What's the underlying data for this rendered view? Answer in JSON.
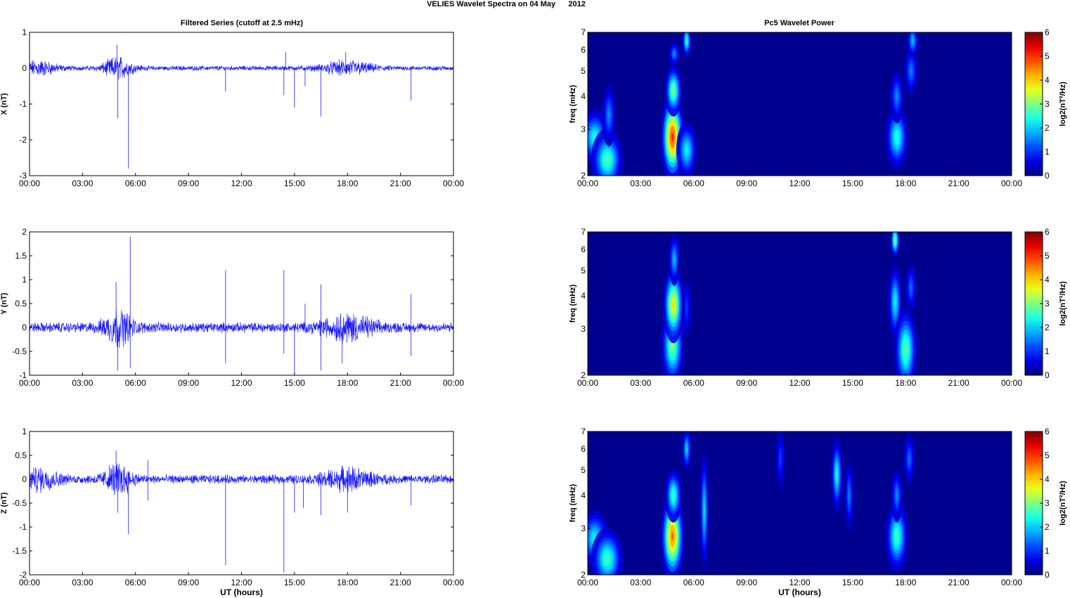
{
  "figure": {
    "title": "VELIES Wavelet Spectra on 04 May      2012"
  },
  "colors": {
    "trace": "#1a1aff",
    "background_spec": "#00008f"
  },
  "chart_data": [
    {
      "type": "line",
      "title": "Filtered Series (cutoff at 2.5 mHz)",
      "xlabel": "",
      "ylabel": "X (nT)",
      "xlim": [
        0,
        24
      ],
      "ylim": [
        -3,
        1
      ],
      "xticklabels": [
        "00:00",
        "03:00",
        "06:00",
        "09:00",
        "12:00",
        "15:00",
        "18:00",
        "21:00",
        "00:00"
      ],
      "yticks": [
        -3,
        -2,
        -1,
        0,
        1
      ],
      "yticklabels": [
        "-3",
        "-2",
        "-1",
        "0",
        "1"
      ],
      "noise_amp": 0.05,
      "bursts": [
        {
          "t": 0.5,
          "w": 1.0,
          "a": 0.15
        },
        {
          "t": 5.0,
          "w": 0.8,
          "a": 0.22
        },
        {
          "t": 18.0,
          "w": 1.4,
          "a": 0.14
        }
      ],
      "spikes": [
        [
          4.95,
          0.65
        ],
        [
          5.0,
          -1.4
        ],
        [
          5.6,
          -2.8
        ],
        [
          11.1,
          -0.65
        ],
        [
          14.4,
          -0.75
        ],
        [
          14.5,
          0.45
        ],
        [
          15.0,
          -1.1
        ],
        [
          15.6,
          -0.5
        ],
        [
          16.5,
          -1.35
        ],
        [
          21.6,
          -0.9
        ],
        [
          17.9,
          0.45
        ]
      ]
    },
    {
      "type": "line",
      "title": "",
      "xlabel": "",
      "ylabel": "Y (nT)",
      "xlim": [
        0,
        24
      ],
      "ylim": [
        -1,
        2
      ],
      "xticklabels": [
        "00:00",
        "03:00",
        "06:00",
        "09:00",
        "12:00",
        "15:00",
        "18:00",
        "21:00",
        "00:00"
      ],
      "yticks": [
        -1,
        -0.5,
        0,
        0.5,
        1,
        1.5,
        2
      ],
      "yticklabels": [
        "-1",
        "-0.5",
        "0",
        "0.5",
        "1",
        "1.5",
        "2"
      ],
      "noise_amp": 0.08,
      "bursts": [
        {
          "t": 5.0,
          "w": 0.8,
          "a": 0.25
        },
        {
          "t": 18.0,
          "w": 1.4,
          "a": 0.18
        }
      ],
      "spikes": [
        [
          4.9,
          0.95
        ],
        [
          5.0,
          -0.9
        ],
        [
          5.7,
          1.9
        ],
        [
          5.7,
          -0.85
        ],
        [
          11.1,
          1.2
        ],
        [
          11.1,
          -0.75
        ],
        [
          14.4,
          1.2
        ],
        [
          14.4,
          -0.55
        ],
        [
          15.0,
          -0.95
        ],
        [
          15.6,
          0.5
        ],
        [
          16.5,
          0.9
        ],
        [
          16.5,
          -0.9
        ],
        [
          17.7,
          -0.75
        ],
        [
          21.6,
          0.7
        ],
        [
          21.6,
          -0.6
        ]
      ]
    },
    {
      "type": "line",
      "title": "",
      "xlabel": "UT (hours)",
      "ylabel": "Z (nT)",
      "xlim": [
        0,
        24
      ],
      "ylim": [
        -2,
        1
      ],
      "xticklabels": [
        "00:00",
        "03:00",
        "06:00",
        "09:00",
        "12:00",
        "15:00",
        "18:00",
        "21:00",
        "00:00"
      ],
      "yticks": [
        -2,
        -1.5,
        -1,
        -0.5,
        0,
        0.5,
        1
      ],
      "yticklabels": [
        "-2",
        "-1.5",
        "-1",
        "-0.5",
        "0",
        "0.5",
        "1"
      ],
      "noise_amp": 0.07,
      "bursts": [
        {
          "t": 0.6,
          "w": 1.0,
          "a": 0.15
        },
        {
          "t": 5.0,
          "w": 0.8,
          "a": 0.22
        },
        {
          "t": 18.0,
          "w": 1.4,
          "a": 0.15
        }
      ],
      "spikes": [
        [
          4.9,
          0.6
        ],
        [
          5.0,
          -0.7
        ],
        [
          5.6,
          -1.15
        ],
        [
          6.7,
          0.4
        ],
        [
          6.7,
          -0.45
        ],
        [
          11.1,
          -1.8
        ],
        [
          14.4,
          -1.95
        ],
        [
          15.0,
          -0.7
        ],
        [
          15.5,
          -0.6
        ],
        [
          16.5,
          -0.75
        ],
        [
          18.0,
          -0.7
        ],
        [
          21.6,
          -0.55
        ]
      ]
    },
    {
      "type": "heatmap",
      "title": "Pc5 Wavelet Power",
      "xlabel": "",
      "ylabel": "freq (mHz)",
      "xlim": [
        0,
        24
      ],
      "ylim": [
        2,
        7
      ],
      "yscale": "log",
      "xticklabels": [
        "00:00",
        "03:00",
        "06:00",
        "09:00",
        "12:00",
        "15:00",
        "18:00",
        "21:00",
        "00:00"
      ],
      "yticks": [
        2,
        3,
        4,
        5,
        6,
        7
      ],
      "yticklabels": [
        "2",
        "3",
        "4",
        "5",
        "6",
        "7"
      ],
      "colorbar": {
        "label": "log2(nT²/Hz)",
        "range": [
          0,
          6
        ],
        "ticks": [
          "0",
          "1",
          "2",
          "3",
          "4",
          "5",
          "6"
        ]
      },
      "blobs": [
        {
          "t": 0.4,
          "f": 2.8,
          "dt": 0.25,
          "df": 0.22,
          "p": 2.3
        },
        {
          "t": 1.1,
          "f": 2.3,
          "dt": 0.28,
          "df": 0.2,
          "p": 2.7
        },
        {
          "t": 1.2,
          "f": 3.4,
          "dt": 0.12,
          "df": 0.3,
          "p": 1.5
        },
        {
          "t": 4.8,
          "f": 2.8,
          "dt": 0.2,
          "df": 0.35,
          "p": 5.0
        },
        {
          "t": 4.85,
          "f": 4.2,
          "dt": 0.15,
          "df": 0.3,
          "p": 3.0
        },
        {
          "t": 4.9,
          "f": 5.8,
          "dt": 0.1,
          "df": 0.2,
          "p": 1.5
        },
        {
          "t": 5.6,
          "f": 2.5,
          "dt": 0.18,
          "df": 0.2,
          "p": 2.2
        },
        {
          "t": 5.6,
          "f": 6.5,
          "dt": 0.07,
          "df": 0.3,
          "p": 2.5
        },
        {
          "t": 17.5,
          "f": 2.8,
          "dt": 0.2,
          "df": 0.25,
          "p": 2.4
        },
        {
          "t": 17.5,
          "f": 4.0,
          "dt": 0.12,
          "df": 0.3,
          "p": 1.5
        },
        {
          "t": 18.3,
          "f": 5.0,
          "dt": 0.12,
          "df": 0.35,
          "p": 1.4
        },
        {
          "t": 18.4,
          "f": 6.5,
          "dt": 0.1,
          "df": 0.3,
          "p": 1.8
        }
      ]
    },
    {
      "type": "heatmap",
      "title": "",
      "xlabel": "",
      "ylabel": "freq (mHz)",
      "xlim": [
        0,
        24
      ],
      "ylim": [
        2,
        7
      ],
      "yscale": "log",
      "xticklabels": [
        "00:00",
        "03:00",
        "06:00",
        "09:00",
        "12:00",
        "15:00",
        "18:00",
        "21:00",
        "00:00"
      ],
      "yticks": [
        2,
        3,
        4,
        5,
        6,
        7
      ],
      "yticklabels": [
        "2",
        "3",
        "4",
        "5",
        "6",
        "7"
      ],
      "colorbar": {
        "label": "log2(nT²/Hz)",
        "range": [
          0,
          6
        ],
        "ticks": [
          "0",
          "1",
          "2",
          "3",
          "4",
          "5",
          "6"
        ]
      },
      "blobs": [
        {
          "t": 4.8,
          "f": 2.6,
          "dt": 0.2,
          "df": 0.3,
          "p": 3.0
        },
        {
          "t": 4.85,
          "f": 3.7,
          "dt": 0.18,
          "df": 0.4,
          "p": 3.8
        },
        {
          "t": 4.9,
          "f": 5.5,
          "dt": 0.1,
          "df": 0.4,
          "p": 1.8
        },
        {
          "t": 5.6,
          "f": 3.6,
          "dt": 0.07,
          "df": 0.3,
          "p": 1.0
        },
        {
          "t": 17.4,
          "f": 6.5,
          "dt": 0.08,
          "df": 0.3,
          "p": 3.0
        },
        {
          "t": 17.4,
          "f": 3.8,
          "dt": 0.12,
          "df": 0.4,
          "p": 2.2
        },
        {
          "t": 18.0,
          "f": 2.5,
          "dt": 0.2,
          "df": 0.3,
          "p": 2.8
        },
        {
          "t": 18.3,
          "f": 4.3,
          "dt": 0.1,
          "df": 0.3,
          "p": 1.3
        }
      ]
    },
    {
      "type": "heatmap",
      "title": "",
      "xlabel": "UT (hours)",
      "ylabel": "freq (mHz)",
      "xlim": [
        0,
        24
      ],
      "ylim": [
        2,
        7
      ],
      "yscale": "log",
      "xticklabels": [
        "00:00",
        "03:00",
        "06:00",
        "09:00",
        "12:00",
        "15:00",
        "18:00",
        "21:00",
        "00:00"
      ],
      "yticks": [
        2,
        3,
        4,
        5,
        6,
        7
      ],
      "yticklabels": [
        "2",
        "3",
        "4",
        "5",
        "6",
        "7"
      ],
      "colorbar": {
        "label": "log2(nT²/Hz)",
        "range": [
          0,
          6
        ],
        "ticks": [
          "0",
          "1",
          "2",
          "3",
          "4",
          "5",
          "6"
        ]
      },
      "blobs": [
        {
          "t": 0.4,
          "f": 2.75,
          "dt": 0.25,
          "df": 0.22,
          "p": 2.2
        },
        {
          "t": 1.1,
          "f": 2.3,
          "dt": 0.28,
          "df": 0.2,
          "p": 2.6
        },
        {
          "t": 4.8,
          "f": 2.8,
          "dt": 0.2,
          "df": 0.35,
          "p": 4.6
        },
        {
          "t": 4.85,
          "f": 4.0,
          "dt": 0.15,
          "df": 0.3,
          "p": 2.6
        },
        {
          "t": 5.6,
          "f": 6.0,
          "dt": 0.06,
          "df": 0.35,
          "p": 2.0
        },
        {
          "t": 6.6,
          "f": 3.5,
          "dt": 0.08,
          "df": 0.6,
          "p": 2.0
        },
        {
          "t": 10.9,
          "f": 5.5,
          "dt": 0.06,
          "df": 0.5,
          "p": 1.0
        },
        {
          "t": 14.1,
          "f": 4.8,
          "dt": 0.1,
          "df": 0.5,
          "p": 2.3
        },
        {
          "t": 14.8,
          "f": 4.0,
          "dt": 0.08,
          "df": 0.4,
          "p": 1.4
        },
        {
          "t": 17.5,
          "f": 2.8,
          "dt": 0.2,
          "df": 0.28,
          "p": 2.6
        },
        {
          "t": 17.5,
          "f": 4.0,
          "dt": 0.1,
          "df": 0.3,
          "p": 1.5
        },
        {
          "t": 18.2,
          "f": 5.5,
          "dt": 0.1,
          "df": 0.4,
          "p": 1.3
        }
      ]
    }
  ]
}
